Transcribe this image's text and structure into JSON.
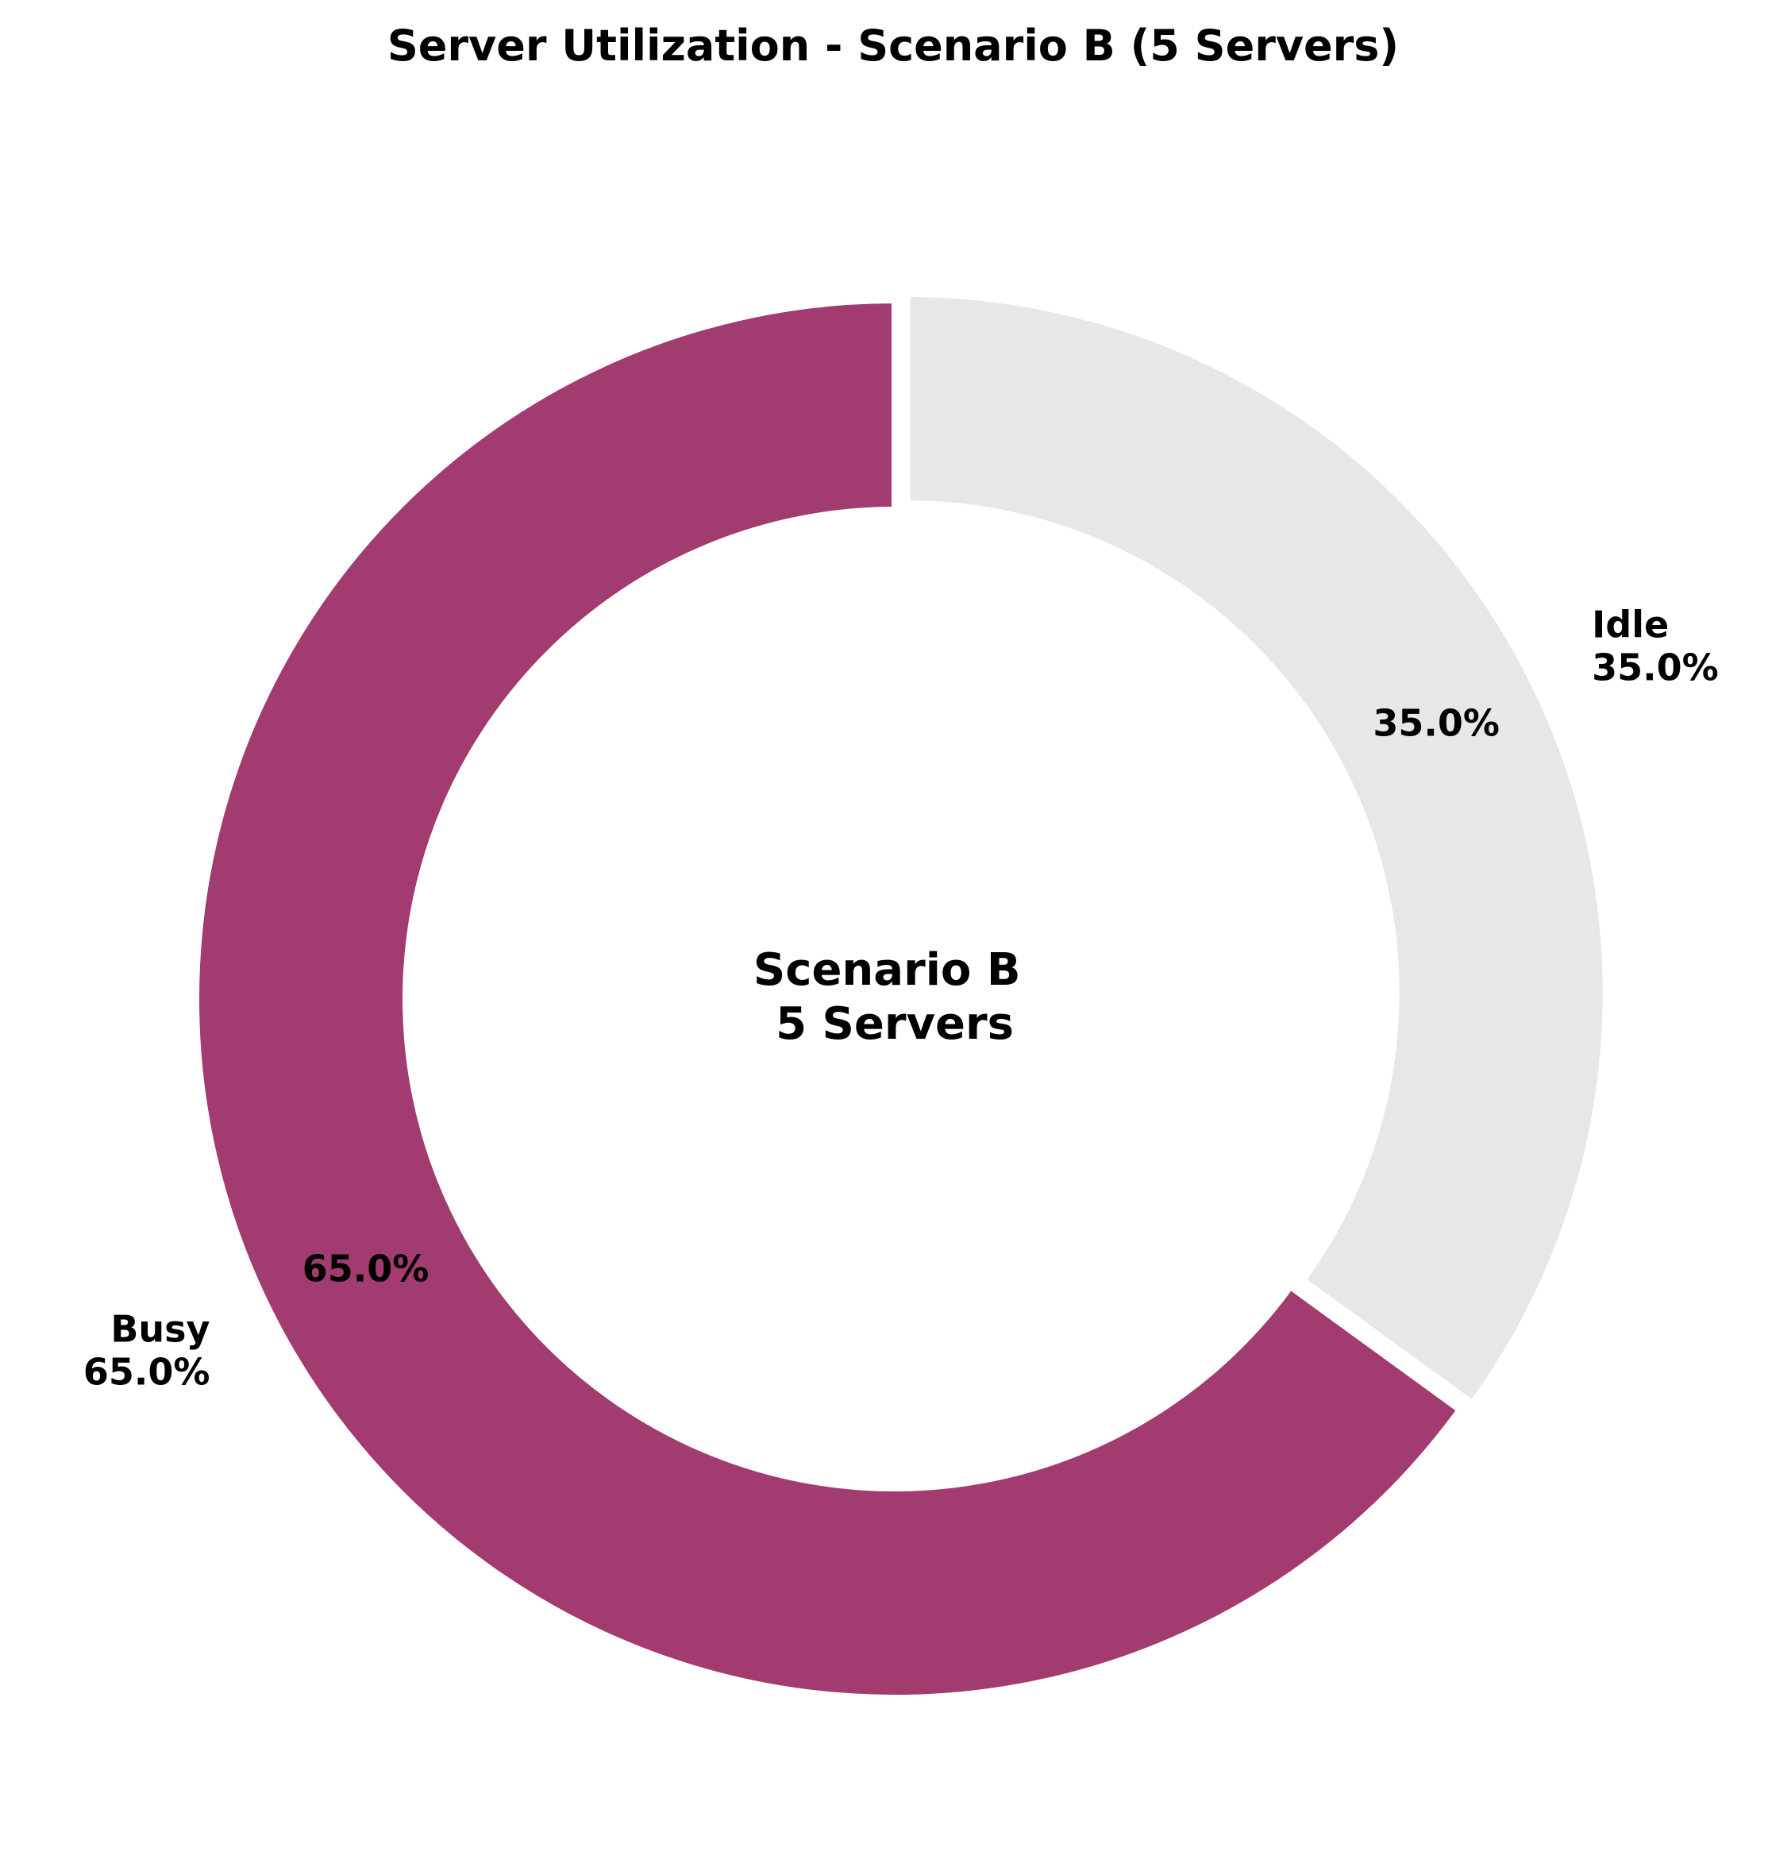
{
  "chart_data": {
    "type": "pie",
    "title": "Server Utilization - Scenario B (5 Servers)",
    "center_text": [
      "Scenario B",
      "5 Servers"
    ],
    "slices": [
      {
        "label": "Busy",
        "value": 65.0,
        "pct_text": "65.0%",
        "color": "#a23b6f",
        "exploded": false
      },
      {
        "label": "Idle",
        "value": 35.0,
        "pct_text": "35.0%",
        "color": "#e7e7e7",
        "exploded": true
      }
    ],
    "donut": true,
    "start_angle": "top",
    "direction": "counterclockwise",
    "legend": "none"
  }
}
